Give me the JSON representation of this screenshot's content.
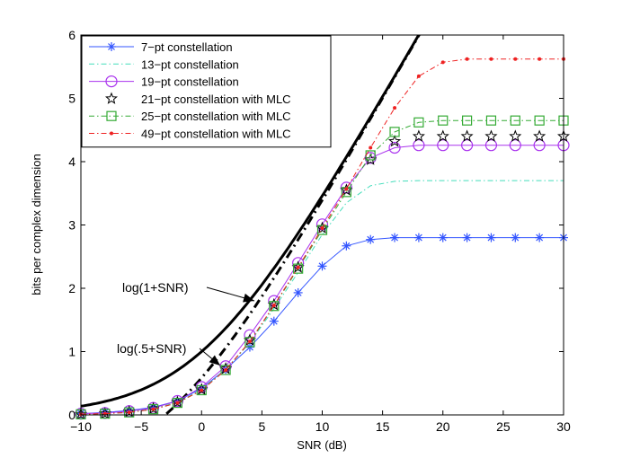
{
  "chart_data": {
    "type": "line",
    "title": "",
    "xlabel": "SNR (dB)",
    "ylabel": "bits per complex dimension",
    "xlim": [
      -10,
      30
    ],
    "ylim": [
      0,
      6
    ],
    "xticks": [
      -10,
      -5,
      0,
      5,
      10,
      15,
      20,
      25,
      30
    ],
    "xtick_labels": [
      "−10",
      "−5",
      "0",
      "5",
      "10",
      "15",
      "20",
      "25",
      "30"
    ],
    "yticks": [
      0,
      1,
      2,
      3,
      4,
      5,
      6
    ],
    "ytick_labels": [
      "0",
      "1",
      "2",
      "3",
      "4",
      "5",
      "6"
    ],
    "grid": false,
    "legend_position": "top-left",
    "x": [
      -10,
      -8,
      -6,
      -4,
      -2,
      0,
      2,
      4,
      6,
      8,
      10,
      12,
      14,
      16,
      18,
      20,
      22,
      24,
      26,
      28,
      30
    ],
    "series": [
      {
        "name": "7−pt constellation",
        "color": "#3355ff",
        "marker": "asterisk",
        "dash": "solid",
        "values": [
          0.02,
          0.04,
          0.07,
          0.12,
          0.22,
          0.42,
          0.72,
          1.07,
          1.48,
          1.93,
          2.35,
          2.67,
          2.77,
          2.8,
          2.8,
          2.8,
          2.8,
          2.8,
          2.8,
          2.8,
          2.8
        ]
      },
      {
        "name": "13−pt constellation",
        "color": "#44ddbb",
        "marker": "none",
        "dash": "dashdot",
        "values": [
          0.01,
          0.02,
          0.05,
          0.1,
          0.2,
          0.4,
          0.72,
          1.14,
          1.68,
          2.25,
          2.85,
          3.35,
          3.62,
          3.69,
          3.7,
          3.7,
          3.7,
          3.7,
          3.7,
          3.7,
          3.7
        ]
      },
      {
        "name": "19−pt constellation",
        "color": "#aa33ee",
        "marker": "circle",
        "dash": "solid",
        "values": [
          0.02,
          0.03,
          0.06,
          0.11,
          0.22,
          0.44,
          0.77,
          1.26,
          1.8,
          2.4,
          3.01,
          3.59,
          4.06,
          4.22,
          4.26,
          4.26,
          4.26,
          4.26,
          4.26,
          4.26,
          4.26
        ]
      },
      {
        "name": "21−pt constellation with MLC",
        "color": "#000000",
        "marker": "star",
        "dash": "none",
        "values": [
          0.01,
          0.02,
          0.05,
          0.1,
          0.2,
          0.4,
          0.73,
          1.18,
          1.74,
          2.33,
          2.95,
          3.55,
          4.03,
          4.32,
          4.4,
          4.4,
          4.4,
          4.4,
          4.4,
          4.4,
          4.4
        ]
      },
      {
        "name": "25−pt constellation with MLC",
        "color": "#33aa33",
        "marker": "square",
        "dash": "dashdot",
        "values": [
          0.01,
          0.02,
          0.04,
          0.09,
          0.19,
          0.39,
          0.71,
          1.15,
          1.72,
          2.31,
          2.92,
          3.52,
          4.1,
          4.47,
          4.62,
          4.65,
          4.65,
          4.65,
          4.65,
          4.65,
          4.65
        ]
      },
      {
        "name": "49−pt constellation with MLC",
        "color": "#ee2222",
        "marker": "dot",
        "dash": "dashdot",
        "values": [
          0.01,
          0.02,
          0.04,
          0.09,
          0.19,
          0.39,
          0.71,
          1.16,
          1.73,
          2.33,
          2.95,
          3.57,
          4.22,
          4.85,
          5.35,
          5.57,
          5.62,
          5.62,
          5.62,
          5.62,
          5.62
        ]
      }
    ],
    "reference_curves": [
      {
        "name": "log(1+SNR)",
        "label": "log(1+SNR)",
        "formula_offset": 1,
        "style": "solid-thick"
      },
      {
        "name": "log(.5+SNR)",
        "label": "log(.5+SNR)",
        "formula_offset": 0.5,
        "style": "dashdot-thick"
      }
    ],
    "annotations": [
      {
        "text": "log(1+SNR)",
        "points_to": "log(1+SNR)",
        "arrow_x": 4,
        "arrow_y": 1.8
      },
      {
        "text": "log(.5+SNR)",
        "points_to": "log(.5+SNR)",
        "arrow_x": 1,
        "arrow_y": 0.8
      }
    ]
  }
}
